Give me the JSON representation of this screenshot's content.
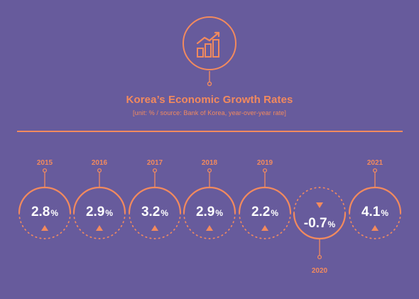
{
  "chart_data": {
    "type": "table",
    "title": "Korea’s Economic Growth Rates",
    "subtitle": "[unit: % / source: Bank of Korea, year-over-year rate]",
    "unit": "%",
    "categories": [
      "2015",
      "2016",
      "2017",
      "2018",
      "2019",
      "2020",
      "2021"
    ],
    "values": [
      2.8,
      2.9,
      3.2,
      2.9,
      2.2,
      -0.7,
      4.1
    ],
    "value_labels": [
      "2.8",
      "2.9",
      "3.2",
      "2.9",
      "2.2",
      "-0.7",
      "4.1"
    ],
    "directions": [
      "up",
      "up",
      "up",
      "up",
      "up",
      "down",
      "up"
    ]
  },
  "colors": {
    "background": "#675b9c",
    "accent": "#f28a5e",
    "text": "#ffffff"
  },
  "icons": {
    "header": "growth-chart-icon",
    "up": "triangle-up-icon",
    "down": "triangle-down-icon"
  }
}
